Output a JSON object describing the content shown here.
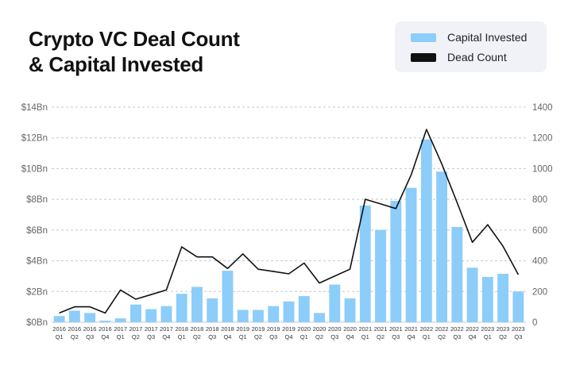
{
  "chart_data": {
    "type": "bar",
    "title_line1": "Crypto VC Deal Count",
    "title_line2": "& Capital Invested",
    "legend": {
      "bar_label": "Capital Invested",
      "line_label": "Dead Count",
      "placement": "top-right"
    },
    "colors": {
      "bar": "#8ccdfa",
      "line": "#111111",
      "grid": "#c8c8c8"
    },
    "categories": [
      [
        "2016",
        "Q1"
      ],
      [
        "2016",
        "Q2"
      ],
      [
        "2016",
        "Q3"
      ],
      [
        "2016",
        "Q4"
      ],
      [
        "2017",
        "Q1"
      ],
      [
        "2017",
        "Q2"
      ],
      [
        "2017",
        "Q3"
      ],
      [
        "2017",
        "Q4"
      ],
      [
        "2018",
        "Q1"
      ],
      [
        "2018",
        "Q2"
      ],
      [
        "2018",
        "Q3"
      ],
      [
        "2018",
        "Q4"
      ],
      [
        "2019",
        "Q1"
      ],
      [
        "2019",
        "Q2"
      ],
      [
        "2019",
        "Q3"
      ],
      [
        "2019",
        "Q4"
      ],
      [
        "2020",
        "Q1"
      ],
      [
        "2020",
        "Q2"
      ],
      [
        "2020",
        "Q3"
      ],
      [
        "2020",
        "Q4"
      ],
      [
        "2021",
        "Q1"
      ],
      [
        "2021",
        "Q2"
      ],
      [
        "2021",
        "Q3"
      ],
      [
        "2021",
        "Q4"
      ],
      [
        "2022",
        "Q1"
      ],
      [
        "2022",
        "Q2"
      ],
      [
        "2022",
        "Q3"
      ],
      [
        "2022",
        "Q4"
      ],
      [
        "2023",
        "Q1"
      ],
      [
        "2023",
        "Q2"
      ],
      [
        "2023",
        "Q3"
      ]
    ],
    "left_axis": {
      "ticks": [
        "$0Bn",
        "$2Bn",
        "$4Bn",
        "$6Bn",
        "$8Bn",
        "$10Bn",
        "$12Bn",
        "$14Bn"
      ],
      "ylim": [
        0,
        14
      ]
    },
    "right_axis": {
      "ticks": [
        "0",
        "200",
        "400",
        "600",
        "800",
        "1000",
        "1200",
        "1400"
      ],
      "ylim": [
        0,
        1400
      ]
    },
    "grid": true,
    "series": [
      {
        "name": "Capital Invested",
        "type": "bar",
        "axis": "left",
        "values": [
          0.4,
          0.75,
          0.6,
          0.1,
          0.25,
          1.15,
          0.85,
          1.05,
          1.85,
          2.3,
          1.55,
          3.35,
          0.8,
          0.8,
          1.05,
          1.35,
          1.7,
          0.6,
          2.45,
          1.55,
          7.6,
          6.0,
          7.9,
          8.75,
          11.9,
          9.8,
          6.2,
          3.55,
          2.95,
          3.15,
          2.0
        ]
      },
      {
        "name": "Dead Count",
        "type": "line",
        "axis": "right",
        "values": [
          60,
          100,
          100,
          60,
          210,
          150,
          180,
          210,
          490,
          425,
          425,
          350,
          445,
          345,
          330,
          315,
          385,
          255,
          300,
          345,
          800,
          770,
          740,
          960,
          1255,
          1030,
          780,
          520,
          635,
          495,
          310
        ]
      }
    ]
  }
}
